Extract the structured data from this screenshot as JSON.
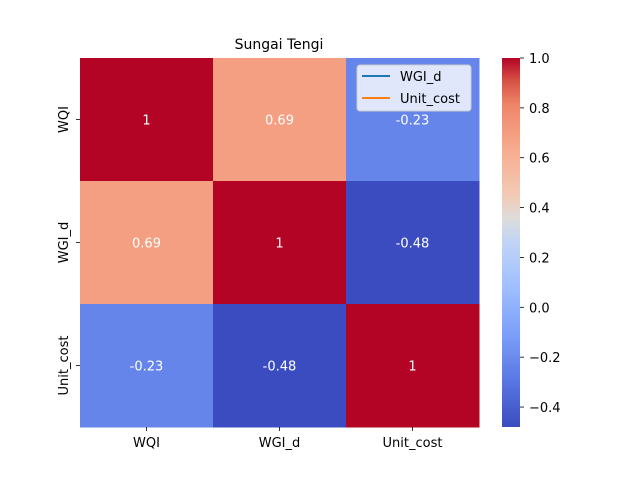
{
  "chart_data": {
    "type": "heatmap",
    "title": "Sungai Tengi",
    "x_categories": [
      "WQI",
      "WGI_d",
      "Unit_cost"
    ],
    "y_categories": [
      "WQI",
      "WGI_d",
      "Unit_cost"
    ],
    "values": [
      [
        1,
        0.69,
        -0.23
      ],
      [
        0.69,
        1,
        -0.48
      ],
      [
        -0.23,
        -0.48,
        1
      ]
    ],
    "cell_labels": [
      [
        "1",
        "0.69",
        "-0.23"
      ],
      [
        "0.69",
        "1",
        "-0.48"
      ],
      [
        "-0.23",
        "-0.48",
        "1"
      ]
    ],
    "colormap": "coolwarm",
    "color_range": [
      -0.48,
      1.0
    ],
    "colorbar_ticks": [
      1.0,
      0.8,
      0.6,
      0.4,
      0.2,
      0.0,
      -0.2,
      -0.4
    ],
    "colorbar_tick_labels": [
      "1.0",
      "0.8",
      "0.6",
      "0.4",
      "0.2",
      "0.0",
      "−0.2",
      "−0.4"
    ],
    "legend": {
      "placement": "top-right",
      "entries": [
        {
          "label": "WGI_d",
          "color": "#1f77b4"
        },
        {
          "label": "Unit_cost",
          "color": "#ff7f0e"
        }
      ]
    }
  }
}
